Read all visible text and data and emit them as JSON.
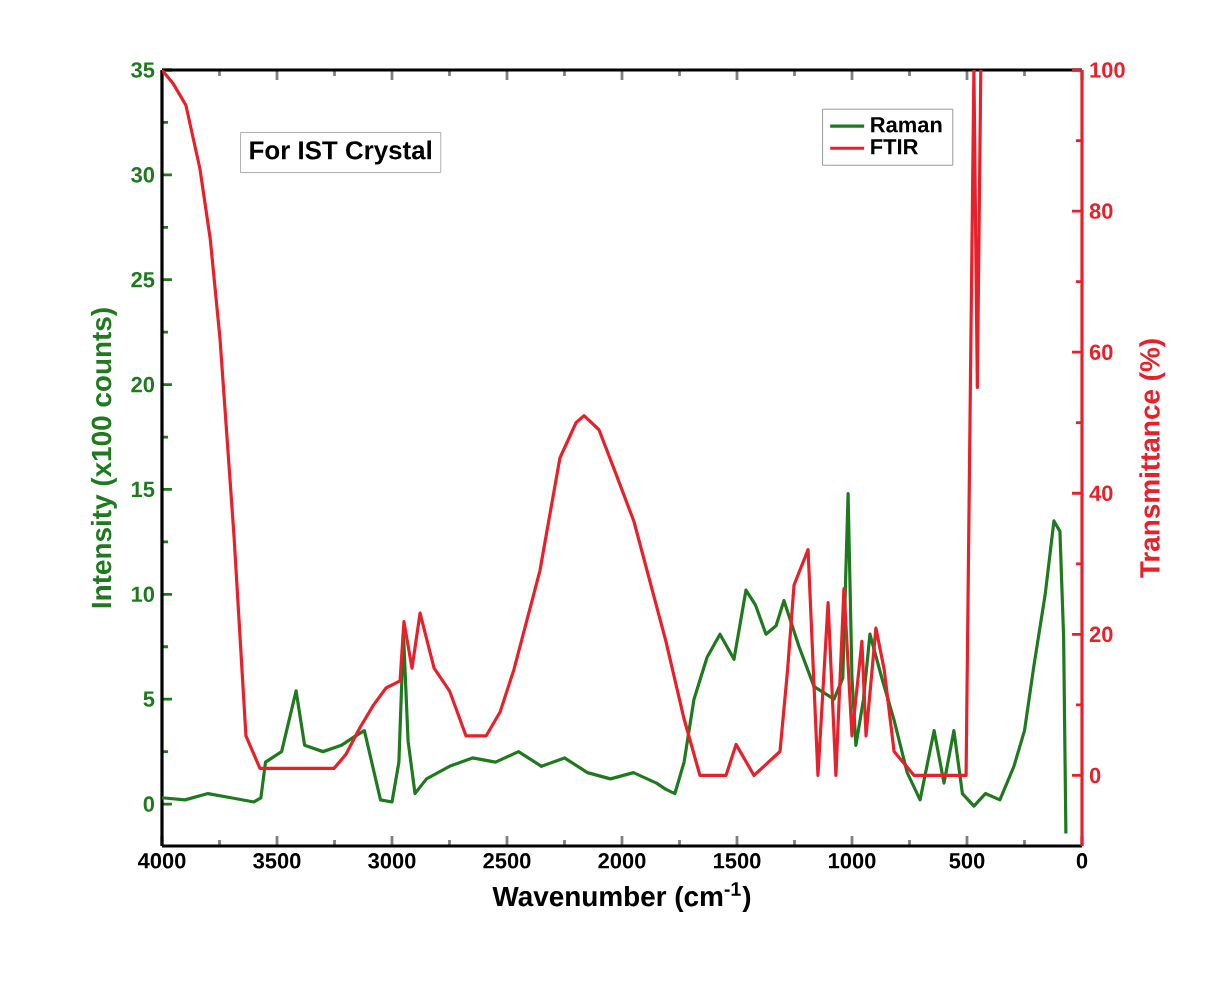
{
  "chart_data": {
    "type": "line",
    "xlabel": "Wavenumber (cm$^{-1}$)",
    "ylabel": "Intensity (x100 counts)",
    "y2label": "Transmittance (%)",
    "annotations": [
      "For IST Crystal"
    ],
    "xlim": [
      4000,
      0
    ],
    "xticks": [
      4000,
      3500,
      3000,
      2500,
      2000,
      1500,
      1000,
      500,
      0
    ],
    "ylim": [
      -2,
      35
    ],
    "yticks": [
      0,
      5,
      10,
      15,
      20,
      25,
      30,
      35
    ],
    "y2lim": [
      -10,
      100
    ],
    "y2ticks": [
      0,
      20,
      40,
      60,
      80,
      100
    ],
    "legend": "top right",
    "series": [
      {
        "name": "Raman",
        "color": "#1f7a1f",
        "axis": "y",
        "x": [
          4000,
          3900,
          3800,
          3700,
          3600,
          3570,
          3550,
          3480,
          3417,
          3380,
          3300,
          3220,
          3165,
          3120,
          3050,
          3000,
          2970,
          2950,
          2930,
          2900,
          2850,
          2750,
          2650,
          2550,
          2450,
          2350,
          2250,
          2150,
          2050,
          1950,
          1850,
          1809,
          1770,
          1730,
          1687,
          1630,
          1574,
          1513,
          1461,
          1420,
          1374,
          1330,
          1296,
          1230,
          1165,
          1078,
          1040,
          1017,
          1000,
          983,
          950,
          922,
          870,
          817,
          760,
          704,
          643,
          600,
          557,
          520,
          470,
          420,
          357,
          296,
          250,
          209,
          160,
          122,
          96,
          80,
          70
        ],
        "values": [
          0.3,
          0.2,
          0.5,
          0.3,
          0.1,
          0.3,
          2.0,
          2.5,
          5.4,
          2.8,
          2.5,
          2.8,
          3.2,
          3.5,
          0.2,
          0.1,
          2.0,
          8.1,
          3.0,
          0.5,
          1.2,
          1.8,
          2.2,
          2.0,
          2.5,
          1.8,
          2.2,
          1.5,
          1.2,
          1.5,
          1.0,
          0.7,
          0.5,
          2.0,
          5.0,
          7.0,
          8.1,
          6.9,
          10.2,
          9.5,
          8.1,
          8.5,
          9.7,
          7.5,
          5.6,
          5.0,
          6.0,
          14.8,
          6.0,
          2.8,
          5.0,
          8.1,
          6.0,
          4.0,
          1.5,
          0.2,
          3.5,
          1.0,
          3.5,
          0.5,
          -0.1,
          0.5,
          0.2,
          1.8,
          3.5,
          6.6,
          10.0,
          13.5,
          13.0,
          8.0,
          -1.4
        ]
      },
      {
        "name": "FTIR",
        "color": "#e8202a",
        "axis": "y2",
        "x": [
          4000,
          3950,
          3896,
          3835,
          3790,
          3748,
          3687,
          3635,
          3574,
          3450,
          3350,
          3252,
          3200,
          3139,
          3080,
          3026,
          2965,
          2948,
          2913,
          2878,
          2817,
          2750,
          2678,
          2591,
          2530,
          2470,
          2357,
          2270,
          2200,
          2165,
          2100,
          2035,
          1948,
          1809,
          1730,
          1661,
          1548,
          1504,
          1426,
          1313,
          1280,
          1252,
          1191,
          1148,
          1104,
          1070,
          1035,
          1000,
          957,
          939,
          896,
          860,
          817,
          730,
          600,
          504,
          470,
          455,
          440
        ],
        "values": [
          100,
          98,
          95,
          86,
          76,
          62,
          34,
          5.6,
          1,
          1,
          1,
          1,
          3,
          6.8,
          10,
          12.4,
          13.4,
          21.8,
          15.2,
          23,
          15.2,
          12,
          5.6,
          5.6,
          9,
          15,
          29,
          45,
          50,
          51,
          49,
          43.5,
          36,
          19,
          8,
          0,
          0,
          4.4,
          0,
          3.4,
          15,
          27,
          32,
          0,
          24.5,
          0,
          26.5,
          5.6,
          19,
          5.6,
          20.9,
          15,
          3.4,
          0,
          0,
          0,
          100,
          55,
          100
        ]
      }
    ]
  }
}
